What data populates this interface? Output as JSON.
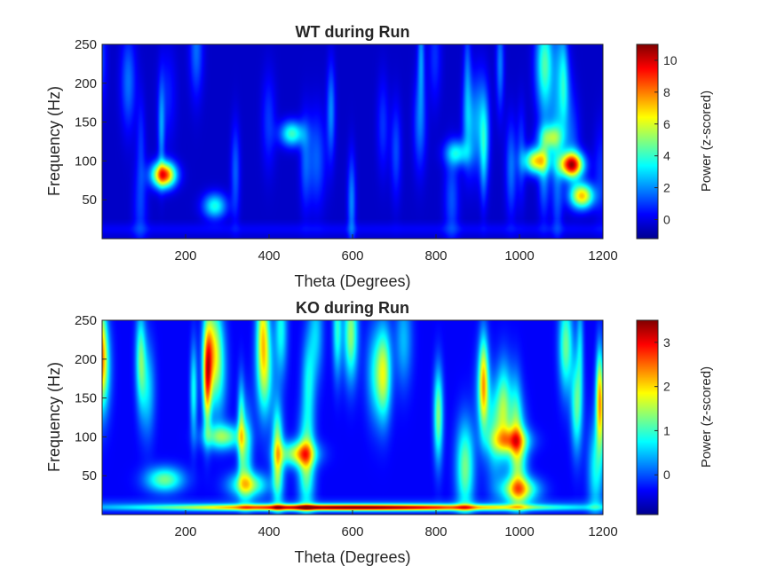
{
  "chart_data": [
    {
      "type": "heatmap",
      "title": "WT during Run",
      "xlabel": "Theta (Degrees)",
      "ylabel": "Frequency (Hz)",
      "xlim": [
        0,
        1200
      ],
      "ylim": [
        0,
        250
      ],
      "xticks": [
        "200",
        "400",
        "600",
        "800",
        "1000",
        "1200"
      ],
      "yticks": [
        "50",
        "100",
        "150",
        "200",
        "250"
      ],
      "colormap": "jet",
      "colorbar": {
        "label": "Power (z-scored)",
        "range": [
          -1.2,
          11
        ],
        "ticks": [
          "0",
          "2",
          "4",
          "6",
          "8",
          "10"
        ]
      },
      "hotspots": [
        {
          "theta": 148,
          "freq": 82,
          "power": 10
        },
        {
          "theta": 1125,
          "freq": 95,
          "power": 10.5
        },
        {
          "theta": 1040,
          "freq": 100,
          "power": 7
        },
        {
          "theta": 1150,
          "freq": 55,
          "power": 7.5
        },
        {
          "theta": 455,
          "freq": 135,
          "power": 4
        },
        {
          "theta": 270,
          "freq": 42,
          "power": 3.5
        },
        {
          "theta": 1075,
          "freq": 130,
          "power": 3.5
        },
        {
          "theta": 850,
          "freq": 110,
          "power": 3
        }
      ]
    },
    {
      "type": "heatmap",
      "title": "KO during Run",
      "xlabel": "Theta (Degrees)",
      "ylabel": "Frequency (Hz)",
      "xlim": [
        0,
        1200
      ],
      "ylim": [
        0,
        250
      ],
      "xticks": [
        "200",
        "400",
        "600",
        "800",
        "1000",
        "1200"
      ],
      "yticks": [
        "50",
        "100",
        "150",
        "200",
        "250"
      ],
      "colormap": "jet",
      "colorbar": {
        "label": "Power (z-scored)",
        "range": [
          -0.9,
          3.5
        ],
        "ticks": [
          "0",
          "1",
          "2",
          "3"
        ]
      },
      "hotspots": [
        {
          "theta": 600,
          "freq": 9,
          "power": 3.4
        },
        {
          "theta": 1000,
          "freq": 32,
          "power": 1.5
        },
        {
          "theta": 470,
          "freq": 78,
          "power": 1.4
        },
        {
          "theta": 350,
          "freq": 38,
          "power": 1.2
        },
        {
          "theta": 150,
          "freq": 45,
          "power": 1.0
        },
        {
          "theta": 290,
          "freq": 100,
          "power": 1.1
        },
        {
          "theta": 980,
          "freq": 95,
          "power": 1.0
        }
      ]
    }
  ]
}
